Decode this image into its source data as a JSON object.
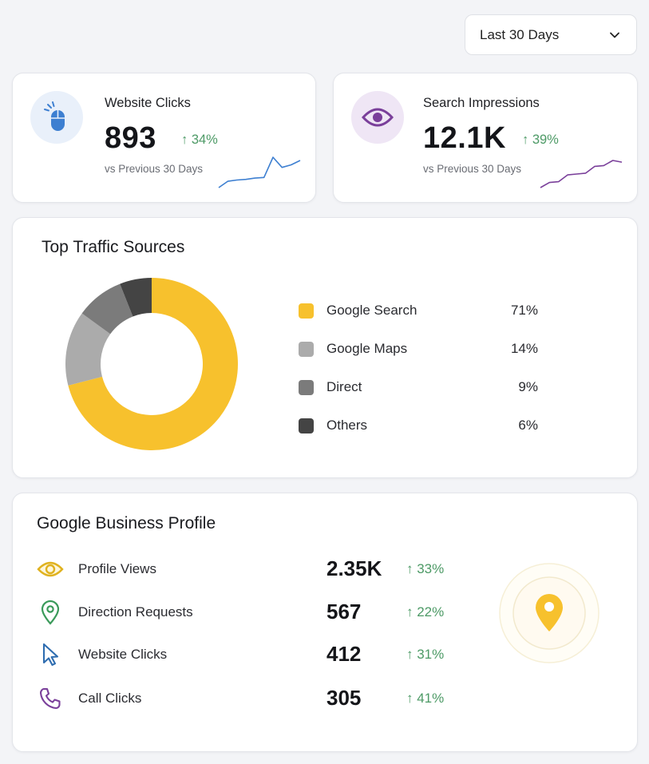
{
  "range_select": {
    "label": "Last 30 Days",
    "icon": "chevron-down-icon"
  },
  "kpis": [
    {
      "title": "Website Clicks",
      "value": "893",
      "delta": "↑ 34%",
      "compare": "vs Previous 30 Days",
      "icon": "mouse-icon",
      "accent": "#3d7fd1",
      "trend": [
        2,
        3,
        3.2,
        3.3,
        3.5,
        3.6,
        6.8,
        5.2,
        5.6,
        6.3
      ]
    },
    {
      "title": "Search Impressions",
      "value": "12.1K",
      "delta": "↑ 39%",
      "compare": "vs Previous 30 Days",
      "icon": "eye-icon",
      "accent": "#7a3f9a",
      "trend": [
        1,
        2.2,
        2.4,
        4.0,
        4.2,
        4.4,
        6.0,
        6.2,
        7.4,
        7.0
      ]
    }
  ],
  "traffic": {
    "title": "Top Traffic Sources",
    "chart_data": {
      "type": "pie",
      "categories": [
        "Google Search",
        "Google Maps",
        "Direct",
        "Others"
      ],
      "values": [
        71,
        14,
        9,
        6
      ],
      "colors": [
        "#f7c12d",
        "#ababab",
        "#7b7b7b",
        "#444444"
      ],
      "labels": [
        "71%",
        "14%",
        "9%",
        "6%"
      ]
    }
  },
  "profile": {
    "title": "Google Business Profile",
    "metrics": [
      {
        "label": "Profile Views",
        "value": "2.35K",
        "delta": "↑ 33%",
        "icon": "eye-icon",
        "color": "#e0b21f"
      },
      {
        "label": "Direction Requests",
        "value": "567",
        "delta": "↑ 22%",
        "icon": "map-pin-icon",
        "color": "#3a9a5a"
      },
      {
        "label": "Website Clicks",
        "value": "412",
        "delta": "↑ 31%",
        "icon": "cursor-icon",
        "color": "#2f6db0"
      },
      {
        "label": "Call Clicks",
        "value": "305",
        "delta": "↑ 41%",
        "icon": "phone-icon",
        "color": "#7a3f9a"
      }
    ],
    "badge_icon": "location-pin-icon",
    "badge_color": "#f7c12d"
  }
}
